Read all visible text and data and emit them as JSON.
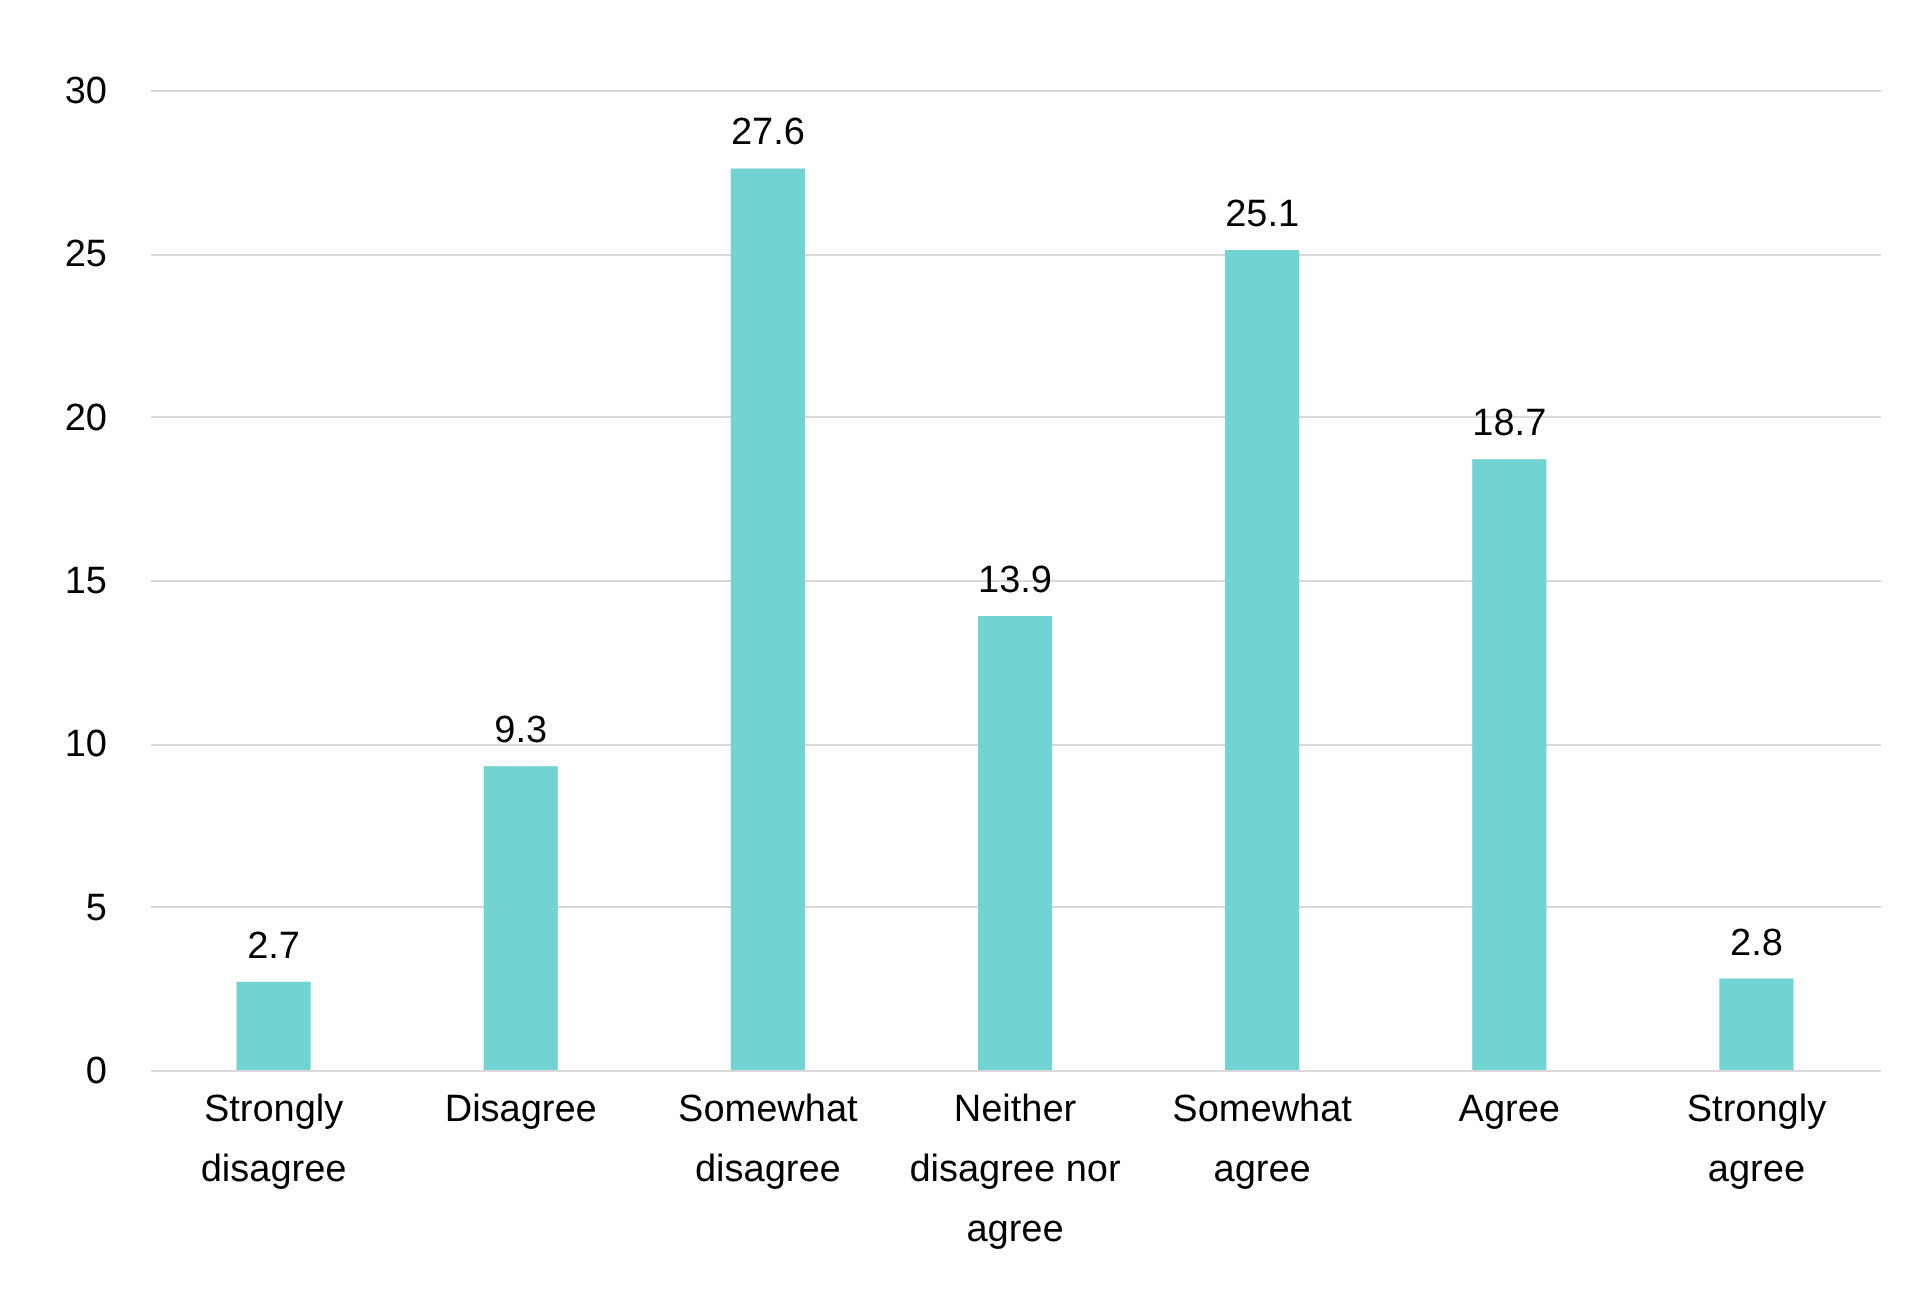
{
  "chart_data": {
    "type": "bar",
    "categories": [
      "Strongly disagree",
      "Disagree",
      "Somewhat disagree",
      "Neither disagree nor agree",
      "Somewhat agree",
      "Agree",
      "Strongly agree"
    ],
    "values": [
      2.7,
      9.3,
      27.6,
      13.9,
      25.1,
      18.7,
      2.8
    ],
    "color": "#72d3d3",
    "ylim": [
      0,
      30
    ],
    "yticks": [
      0,
      5,
      10,
      15,
      20,
      25,
      30
    ],
    "grid": "y",
    "data_labels": true
  }
}
